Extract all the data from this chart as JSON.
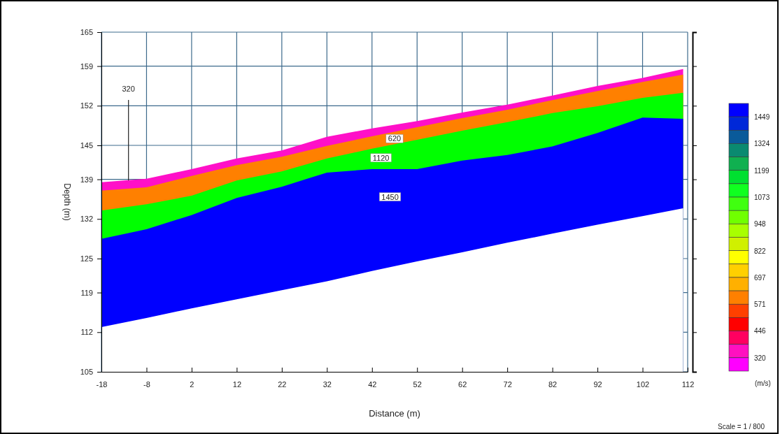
{
  "chart_data": {
    "type": "area",
    "xlabel": "Distance (m)",
    "ylabel": "Depth (m)",
    "clabel": "(m/s)",
    "x": [
      -18,
      -8,
      2,
      12,
      22,
      32,
      42,
      52,
      62,
      72,
      82,
      92,
      102,
      111
    ],
    "series": [
      {
        "color": "#ff10c8",
        "values": [
          138.5,
          139.1,
          140.8,
          142.7,
          144.1,
          146.5,
          148.0,
          149.3,
          150.8,
          152.2,
          153.8,
          155.5,
          156.9,
          158.5
        ]
      },
      {
        "color": "#ff8000",
        "values": [
          137.0,
          137.6,
          139.6,
          141.5,
          143.0,
          144.9,
          146.6,
          148.2,
          149.8,
          151.3,
          153.0,
          154.6,
          156.2,
          157.5
        ]
      },
      {
        "color": "#00ff00",
        "values": [
          133.5,
          134.6,
          136.1,
          138.8,
          140.4,
          142.7,
          144.4,
          146.0,
          147.6,
          149.1,
          150.7,
          151.9,
          153.4,
          154.3
        ]
      },
      {
        "color": "#0000ff",
        "values": [
          128.5,
          130.2,
          132.7,
          135.7,
          137.7,
          140.2,
          140.8,
          140.8,
          142.3,
          143.3,
          144.8,
          147.2,
          149.9,
          149.7
        ]
      },
      {
        "color": "#ffffff",
        "values": [
          112.9,
          114.5,
          116.2,
          117.8,
          119.4,
          121.0,
          122.8,
          124.5,
          126.1,
          127.8,
          129.4,
          131.0,
          132.5,
          133.9
        ]
      }
    ],
    "xlim": [
      -18,
      112
    ],
    "xticks": [
      -18,
      -8,
      2,
      12,
      22,
      32,
      42,
      52,
      62,
      72,
      82,
      92,
      102,
      112
    ],
    "ylim": [
      105,
      165
    ],
    "yticks": [
      105,
      112,
      119,
      125,
      132,
      139,
      145,
      152,
      159,
      165
    ],
    "grid": true,
    "clim": [
      257,
      1512
    ],
    "cticks": [
      320,
      446,
      571,
      697,
      822,
      948,
      1073,
      1199,
      1324,
      1449
    ],
    "annotations": [
      {
        "text": "320",
        "x": -12,
        "y": 138.8
      },
      {
        "text": "620",
        "x": 47,
        "y": 146.2
      },
      {
        "text": "1120",
        "x": 44,
        "y": 142.8
      },
      {
        "text": "1450",
        "x": 46,
        "y": 135.9
      },
      "Scale = 1 / 800"
    ]
  }
}
